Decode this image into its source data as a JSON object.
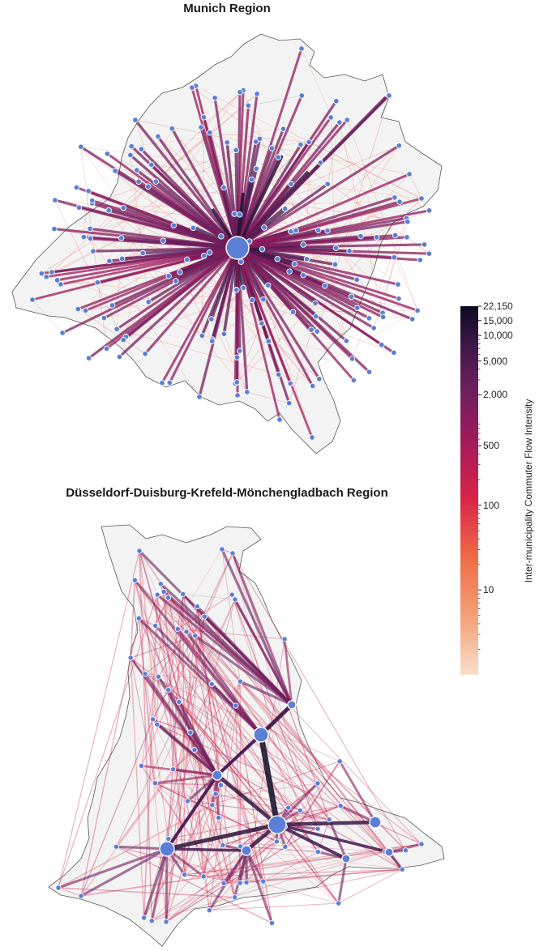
{
  "maps": [
    {
      "id": "munich",
      "title": "Munich Region",
      "hub": "Munich"
    },
    {
      "id": "ddkm",
      "title": "Düsseldorf-Duisburg-Krefeld-Mönchengladbach Region",
      "hubs": [
        "Düsseldorf",
        "Duisburg",
        "Krefeld",
        "Mönchengladbach"
      ]
    }
  ],
  "colorbar": {
    "title": "Inter-municipality Commuter Flow Intensity",
    "scale": "log",
    "min": 1,
    "max": 22150,
    "ticks": [
      {
        "value": 22150,
        "label": "22,150"
      },
      {
        "value": 15000,
        "label": "15,000"
      },
      {
        "value": 10000,
        "label": "10,000"
      },
      {
        "value": 5000,
        "label": "5,000"
      },
      {
        "value": 2000,
        "label": "2,000"
      },
      {
        "value": 500,
        "label": "500"
      },
      {
        "value": 100,
        "label": "100"
      },
      {
        "value": 10,
        "label": "10"
      }
    ],
    "colors": [
      "#f6dfcb",
      "#f4a37a",
      "#ef6a46",
      "#d8244a",
      "#a11a5b",
      "#6b1f5e",
      "#3b1748",
      "#0d0a20"
    ]
  },
  "styles": {
    "node_color": "#5b7fd6",
    "region_fill": "#f3f3f3",
    "border_color": "#555555"
  }
}
